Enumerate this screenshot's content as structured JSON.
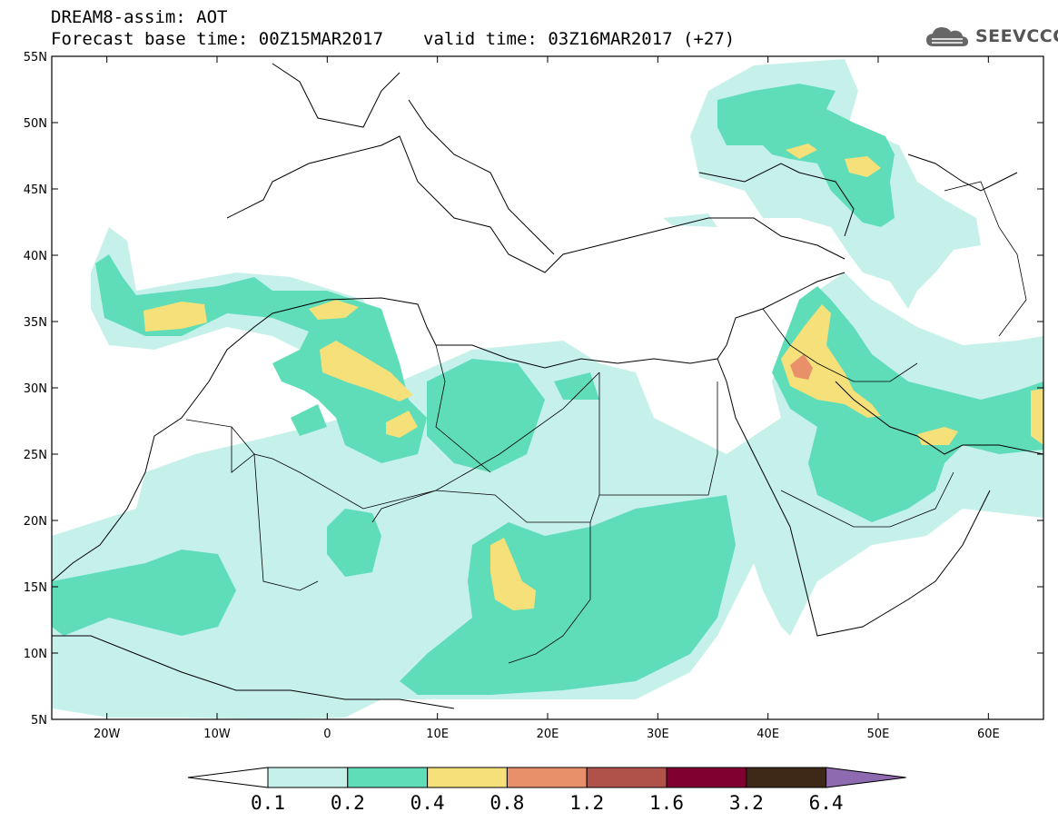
{
  "header": {
    "title": "DREAM8-assim: AOT",
    "base_time_label": "Forecast base time: 00Z15MAR2017",
    "valid_time_label": "valid time: 03Z16MAR2017 (+27)"
  },
  "logo": {
    "text": "SEEVCCC",
    "icon": "cloud-icon"
  },
  "axes": {
    "lat_labels": [
      "55N",
      "50N",
      "45N",
      "40N",
      "35N",
      "30N",
      "25N",
      "20N",
      "15N",
      "10N",
      "5N"
    ],
    "lon_labels": [
      "20W",
      "10W",
      "0",
      "10E",
      "20E",
      "30E",
      "40E",
      "50E",
      "60E"
    ],
    "lat_range": [
      5,
      55
    ],
    "lon_range": [
      -25,
      65
    ]
  },
  "colorbar": {
    "labels": [
      "0.1",
      "0.2",
      "0.4",
      "0.8",
      "1.2",
      "1.6",
      "3.2",
      "6.4"
    ],
    "colors": [
      "#ffffff",
      "#c6f1ea",
      "#5fddb8",
      "#f5e07a",
      "#e8906a",
      "#b0524a",
      "#800030",
      "#3e2818",
      "#8e6ab0"
    ]
  }
}
